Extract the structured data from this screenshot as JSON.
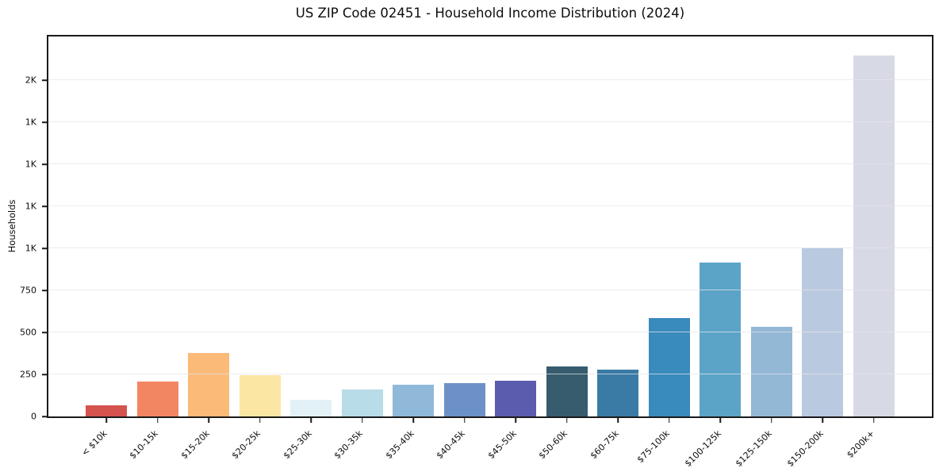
{
  "chart_data": {
    "type": "bar",
    "title": "US ZIP Code 02451 - Household Income Distribution (2024)",
    "xlabel": "",
    "ylabel": "Households",
    "categories": [
      "< $10k",
      "$10-15k",
      "$15-20k",
      "$20-25k",
      "$25-30k",
      "$30-35k",
      "$35-40k",
      "$40-45k",
      "$45-50k",
      "$50-60k",
      "$60-75k",
      "$75-100k",
      "$100-125k",
      "$125-150k",
      "$150-200k",
      "$200k+"
    ],
    "values": [
      68,
      207,
      378,
      247,
      97,
      160,
      187,
      196,
      214,
      298,
      277,
      585,
      917,
      532,
      998,
      2148
    ],
    "bar_colors": [
      "#d4534e",
      "#f28663",
      "#fcba78",
      "#fbe6a4",
      "#e2f1f6",
      "#b8dce8",
      "#90b8d8",
      "#6c91c8",
      "#5b5cad",
      "#365c6e",
      "#3a7ba6",
      "#398abd",
      "#5ba4c8",
      "#93b8d6",
      "#b9c9df",
      "#d7d9e5"
    ],
    "ylim": [
      0,
      2260
    ],
    "yticks": [
      {
        "value": 0,
        "label": "0"
      },
      {
        "value": 250,
        "label": "250"
      },
      {
        "value": 500,
        "label": "500"
      },
      {
        "value": 750,
        "label": "750"
      },
      {
        "value": 1000,
        "label": "1K"
      },
      {
        "value": 1250,
        "label": "1K"
      },
      {
        "value": 1500,
        "label": "1K"
      },
      {
        "value": 1750,
        "label": "1K"
      },
      {
        "value": 2000,
        "label": "2K"
      }
    ],
    "grid": "horizontal",
    "legend_position": "none"
  }
}
